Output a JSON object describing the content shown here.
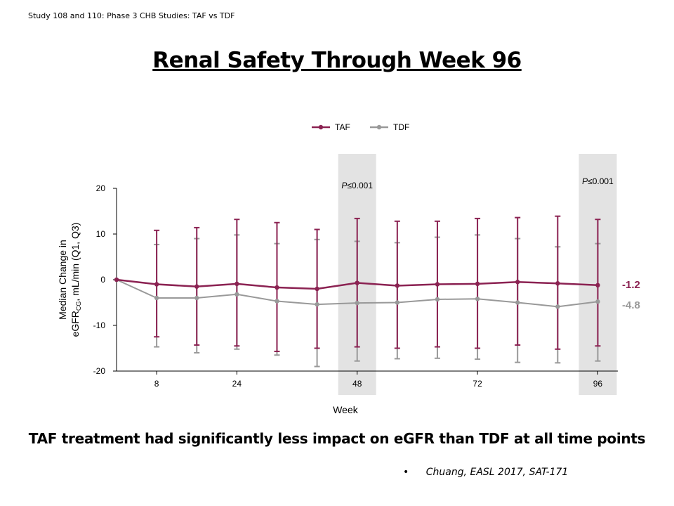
{
  "header": {
    "text": "Study 108 and 110: Phase 3 CHB Studies: TAF vs TDF"
  },
  "title": "Renal Safety Through Week 96",
  "conclusion": "TAF treatment had significantly less impact on eGFR than TDF at all time points",
  "citation": {
    "bullet": "•",
    "text": "Chuang, EASL 2017, SAT-171"
  },
  "chart_data": {
    "type": "line",
    "xlabel": "Week",
    "ylabel_line1": "Median Change in",
    "ylabel_line2_pre": "eGFR",
    "ylabel_line2_sub": "CG",
    "ylabel_line2_post": ", mL/min (Q1, Q3)",
    "ylim": [
      -20,
      20
    ],
    "xlim": [
      0,
      100
    ],
    "yticks": [
      20,
      10,
      0,
      -10,
      -20
    ],
    "xticks": [
      8,
      24,
      48,
      72,
      96
    ],
    "legend": "top-center",
    "grid": false,
    "x": [
      0,
      8,
      16,
      24,
      32,
      40,
      48,
      56,
      64,
      72,
      80,
      88,
      96
    ],
    "series": [
      {
        "name": "TAF",
        "color": "#8b2252",
        "values": [
          0,
          -1.0,
          -1.5,
          -0.9,
          -1.7,
          -2.0,
          -0.7,
          -1.3,
          -1.0,
          -0.9,
          -0.5,
          -0.8,
          -1.2
        ],
        "q1": [
          null,
          -12.5,
          -14.3,
          -14.5,
          -15.7,
          -15.0,
          -14.7,
          -15.0,
          -14.7,
          -15.0,
          -14.3,
          -15.2,
          -14.5
        ],
        "q3": [
          null,
          10.8,
          11.4,
          13.2,
          12.5,
          11.0,
          13.4,
          12.8,
          12.8,
          13.4,
          13.6,
          13.9,
          13.2
        ]
      },
      {
        "name": "TDF",
        "color": "#999999",
        "values": [
          0,
          -4.0,
          -4.0,
          -3.2,
          -4.7,
          -5.4,
          -5.1,
          -5.0,
          -4.3,
          -4.2,
          -5.0,
          -5.9,
          -4.8
        ],
        "q1": [
          null,
          -14.7,
          -16.0,
          -15.2,
          -16.5,
          -19.0,
          -17.8,
          -17.3,
          -17.2,
          -17.4,
          -18.1,
          -18.2,
          -17.8
        ],
        "q3": [
          null,
          7.7,
          9.0,
          9.8,
          7.9,
          8.8,
          8.4,
          8.1,
          9.3,
          9.8,
          9.0,
          7.2,
          7.9
        ]
      }
    ],
    "end_labels": [
      "-1.2",
      "-4.8"
    ],
    "annotations": [
      {
        "week": 48,
        "p_italic": "P",
        "p_rest": "≤0.001"
      },
      {
        "week": 96,
        "p_italic": "P",
        "p_rest": "≤0.001"
      }
    ]
  }
}
